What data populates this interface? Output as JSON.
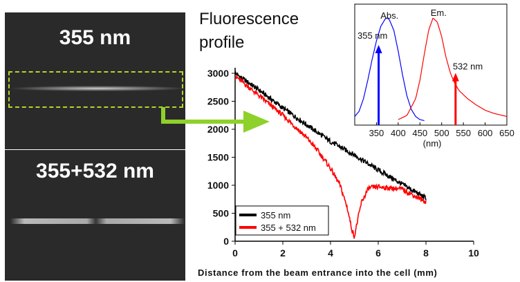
{
  "image_panels": [
    {
      "label": "355 nm"
    },
    {
      "label": "355+532 nm"
    }
  ],
  "figure_title_lines": [
    "Fluorescence",
    "profile"
  ],
  "colors": {
    "series_355": "#000000",
    "series_355_532": "#ff0000",
    "absorption": "#0000ff",
    "emission": "#ff0000",
    "roi": "#b5d62a",
    "arrow": "#8ed12a"
  },
  "chart_data": [
    {
      "type": "line",
      "title": "Fluorescence profile",
      "xlabel": "Distance from the beam entrance into the cell (mm)",
      "ylabel": "",
      "xlim": [
        0,
        10
      ],
      "ylim": [
        0,
        3000
      ],
      "xticks": [
        "0",
        "2",
        "4",
        "6",
        "8",
        "10"
      ],
      "yticks": [
        "0",
        "500",
        "1000",
        "1500",
        "2000",
        "2500",
        "3000"
      ],
      "legend_position": "bottom-left",
      "series": [
        {
          "name": "355 nm",
          "x": [
            0,
            1,
            2,
            3,
            4,
            5,
            6,
            7,
            8
          ],
          "values": [
            3000,
            2700,
            2380,
            2080,
            1780,
            1540,
            1270,
            1020,
            770
          ]
        },
        {
          "name": "355 + 532 nm",
          "x": [
            0,
            1,
            2,
            3,
            3.5,
            4,
            4.4,
            4.7,
            4.9,
            5.0,
            5.1,
            5.3,
            5.6,
            6,
            7,
            8
          ],
          "values": [
            2950,
            2600,
            2250,
            1850,
            1600,
            1300,
            1000,
            600,
            200,
            80,
            300,
            700,
            950,
            970,
            930,
            700
          ]
        }
      ]
    },
    {
      "type": "line",
      "title": "",
      "xlabel": "(nm)",
      "ylabel": "",
      "xlim": [
        300,
        650
      ],
      "xticks": [
        "350",
        "400",
        "450",
        "500",
        "550",
        "600",
        "650"
      ],
      "series": [
        {
          "name": "Abs.",
          "x": [
            300,
            310,
            320,
            330,
            340,
            350,
            360,
            370,
            375,
            380,
            390,
            400,
            410,
            420,
            430,
            440,
            450,
            460
          ],
          "values": [
            0.05,
            0.1,
            0.22,
            0.4,
            0.6,
            0.78,
            0.92,
            0.99,
            1.0,
            0.98,
            0.88,
            0.68,
            0.45,
            0.25,
            0.12,
            0.05,
            0.02,
            0.01
          ]
        },
        {
          "name": "Em.",
          "x": [
            400,
            420,
            440,
            450,
            460,
            470,
            480,
            490,
            500,
            510,
            520,
            530,
            540,
            560,
            580,
            600,
            620,
            650
          ],
          "values": [
            0.02,
            0.06,
            0.22,
            0.4,
            0.65,
            0.88,
            1.0,
            0.96,
            0.82,
            0.62,
            0.47,
            0.37,
            0.3,
            0.22,
            0.16,
            0.11,
            0.08,
            0.05
          ]
        }
      ],
      "annotations": [
        {
          "label": "355 nm",
          "x": 355,
          "value": 0.72,
          "color": "blue"
        },
        {
          "label": "532 nm",
          "x": 532,
          "value": 0.45,
          "color": "red"
        }
      ]
    }
  ]
}
